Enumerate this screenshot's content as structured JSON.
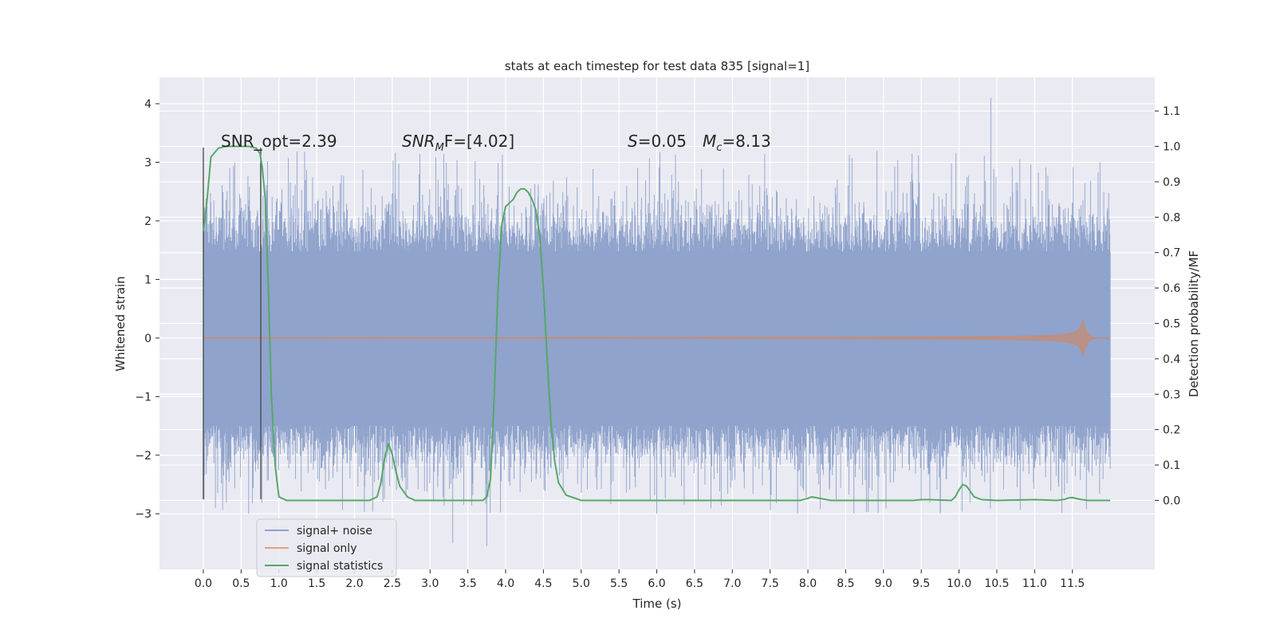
{
  "chart_data": {
    "type": "line",
    "title": "stats at each timestep for test data 835 [signal=1]",
    "xlabel": "Time (s)",
    "ylabel": "Whitened strain",
    "y2label": "Detection probability/MF",
    "xlim": [
      -0.58,
      12.59
    ],
    "ylim": [
      -3.95,
      4.45
    ],
    "y2lim": [
      -0.195,
      1.195
    ],
    "xticks": [
      0.0,
      0.5,
      1.0,
      1.5,
      2.0,
      2.5,
      3.0,
      3.5,
      4.0,
      4.5,
      5.0,
      5.5,
      6.0,
      6.5,
      7.0,
      7.5,
      8.0,
      8.5,
      9.0,
      9.5,
      10.0,
      10.5,
      11.0,
      11.5
    ],
    "xtick_labels": [
      "0.0",
      "0.5",
      "1.0",
      "1.5",
      "2.0",
      "2.5",
      "3.0",
      "3.5",
      "4.0",
      "4.5",
      "5.0",
      "5.5",
      "6.0",
      "6.5",
      "7.0",
      "7.5",
      "8.0",
      "8.5",
      "9.0",
      "9.5",
      "10.0",
      "10.5",
      "11.0",
      "11.5"
    ],
    "yticks": [
      -3,
      -2,
      -1,
      0,
      1,
      2,
      3,
      4
    ],
    "ytick_labels": [
      "−3",
      "−2",
      "−1",
      "0",
      "1",
      "2",
      "3",
      "4"
    ],
    "y2ticks": [
      0.0,
      0.1,
      0.2,
      0.3,
      0.4,
      0.5,
      0.6,
      0.7,
      0.8,
      0.9,
      1.0,
      1.1
    ],
    "y2tick_labels": [
      "0.0",
      "0.1",
      "0.2",
      "0.3",
      "0.4",
      "0.5",
      "0.6",
      "0.7",
      "0.8",
      "0.9",
      "1.0",
      "1.1"
    ],
    "grid": true,
    "legend_position": "lower-left",
    "annotations": {
      "snr_opt": "SNR_opt=2.39",
      "snr_mf_main": "SNR",
      "snr_mf_sub": "M",
      "snr_mf_rest": "F=[4.02]",
      "s_main": "S",
      "s_rest": "=0.05",
      "mc_main": "M",
      "mc_sub": "c",
      "mc_rest": "=8.13"
    },
    "vlines": [
      {
        "x": 0.0,
        "ymin": -2.75,
        "ymax": 3.25
      },
      {
        "x": 0.76,
        "ymin": -2.75,
        "ymax": 3.25
      }
    ],
    "series": [
      {
        "name": "signal+ noise",
        "color": "#8fa3cc",
        "axis": "left",
        "style": "noise",
        "x_range": [
          0.0,
          12.0
        ],
        "band_core": [
          -1.5,
          1.48
        ],
        "spike_extent": [
          -3.6,
          4.1
        ],
        "notable_peaks": [
          [
            10.42,
            4.1
          ],
          [
            3.3,
            -3.5
          ],
          [
            3.75,
            -3.55
          ],
          [
            0.6,
            -3.0
          ],
          [
            6.0,
            -3.0
          ],
          [
            9.75,
            -3.0
          ]
        ]
      },
      {
        "name": "signal only",
        "color": "#dd8452",
        "axis": "left",
        "style": "chirp",
        "x_range": [
          0.0,
          12.0
        ],
        "max_amplitude": 0.3,
        "merger_time": 11.65
      },
      {
        "name": "signal statistics",
        "color": "#55a868",
        "axis": "right",
        "style": "line",
        "x": [
          0.0,
          0.05,
          0.1,
          0.2,
          0.3,
          0.4,
          0.5,
          0.6,
          0.7,
          0.75,
          0.78,
          0.82,
          0.86,
          0.9,
          0.95,
          1.0,
          1.1,
          1.5,
          2.0,
          2.2,
          2.3,
          2.35,
          2.4,
          2.45,
          2.5,
          2.55,
          2.6,
          2.7,
          2.8,
          3.0,
          3.5,
          3.7,
          3.75,
          3.8,
          3.85,
          3.9,
          3.95,
          4.0,
          4.05,
          4.1,
          4.15,
          4.2,
          4.25,
          4.3,
          4.35,
          4.4,
          4.45,
          4.5,
          4.55,
          4.6,
          4.65,
          4.7,
          4.8,
          5.0,
          6.0,
          7.0,
          7.9,
          8.0,
          8.05,
          8.15,
          8.3,
          9.0,
          9.4,
          9.5,
          9.6,
          9.9,
          9.95,
          10.0,
          10.05,
          10.1,
          10.15,
          10.2,
          10.3,
          10.5,
          11.0,
          11.3,
          11.4,
          11.45,
          11.5,
          11.6,
          11.7,
          12.0
        ],
        "values": [
          0.76,
          0.85,
          0.97,
          0.995,
          1.0,
          1.0,
          1.0,
          1.0,
          0.995,
          0.98,
          0.94,
          0.85,
          0.6,
          0.3,
          0.1,
          0.01,
          0.0,
          0.0,
          0.0,
          0.0,
          0.01,
          0.05,
          0.12,
          0.16,
          0.13,
          0.08,
          0.04,
          0.01,
          0.0,
          0.0,
          0.0,
          0.0,
          0.01,
          0.06,
          0.3,
          0.6,
          0.78,
          0.83,
          0.84,
          0.85,
          0.87,
          0.88,
          0.88,
          0.87,
          0.85,
          0.82,
          0.75,
          0.6,
          0.4,
          0.22,
          0.11,
          0.05,
          0.015,
          0.0,
          0.0,
          0.0,
          0.0,
          0.006,
          0.01,
          0.006,
          0.0,
          0.0,
          0.0,
          0.002,
          0.002,
          0.0,
          0.01,
          0.03,
          0.045,
          0.04,
          0.025,
          0.01,
          0.002,
          0.0,
          0.002,
          0.0,
          0.003,
          0.007,
          0.008,
          0.003,
          0.0,
          0.0
        ]
      }
    ]
  }
}
